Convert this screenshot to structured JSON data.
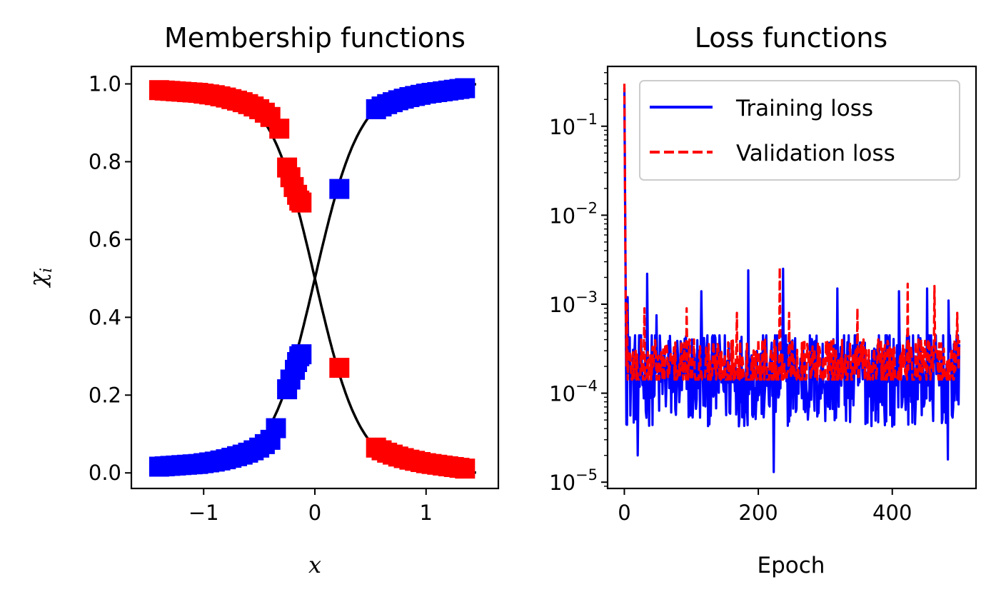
{
  "chart_data": [
    {
      "type": "scatter",
      "title": "Membership functions",
      "xlabel": "x",
      "ylabel": "χ_i",
      "xlim": [
        -1.65,
        1.65
      ],
      "ylim": [
        -0.04,
        1.045
      ],
      "xticks": [
        -1,
        0,
        1
      ],
      "xtick_labels": [
        "−1",
        "0",
        "1"
      ],
      "yticks": [
        0.0,
        0.2,
        0.4,
        0.6,
        0.8,
        1.0
      ],
      "ytick_labels": [
        "0.0",
        "0.2",
        "0.4",
        "0.6",
        "0.8",
        "1.0"
      ],
      "curve": {
        "type": "logistic",
        "slope": 4.9,
        "x_range": [
          -1.45,
          1.45
        ],
        "color": "#000000"
      },
      "series": [
        {
          "color": "#0000ff",
          "marker": "square",
          "x": [
            -1.4,
            -1.35,
            -1.3,
            -1.25,
            -1.2,
            -1.15,
            -1.1,
            -1.05,
            -1.0,
            -0.95,
            -0.9,
            -0.85,
            -0.8,
            -0.75,
            -0.7,
            -0.65,
            -0.6,
            -0.55,
            -0.5,
            -0.45,
            -0.4,
            -0.35,
            -0.25,
            -0.22,
            -0.18,
            -0.16,
            -0.14,
            -0.12,
            0.22,
            0.55,
            0.6,
            0.65,
            0.7,
            0.75,
            0.8,
            0.85,
            0.9,
            0.95,
            1.0,
            1.05,
            1.1,
            1.15,
            1.2,
            1.25,
            1.3,
            1.35
          ],
          "y": [
            0.016,
            0.017,
            0.018,
            0.019,
            0.02,
            0.021,
            0.022,
            0.023,
            0.025,
            0.027,
            0.029,
            0.032,
            0.035,
            0.039,
            0.043,
            0.047,
            0.052,
            0.058,
            0.065,
            0.074,
            0.085,
            0.115,
            0.215,
            0.24,
            0.265,
            0.285,
            0.3,
            0.305,
            0.73,
            0.935,
            0.942,
            0.948,
            0.953,
            0.958,
            0.962,
            0.966,
            0.969,
            0.972,
            0.975,
            0.977,
            0.979,
            0.981,
            0.983,
            0.985,
            0.987,
            0.989
          ]
        },
        {
          "color": "#ff0000",
          "marker": "square",
          "x": [
            -1.4,
            -1.35,
            -1.3,
            -1.25,
            -1.2,
            -1.15,
            -1.1,
            -1.05,
            -1.0,
            -0.95,
            -0.9,
            -0.85,
            -0.8,
            -0.75,
            -0.7,
            -0.65,
            -0.6,
            -0.55,
            -0.5,
            -0.45,
            -0.4,
            -0.32,
            -0.25,
            -0.22,
            -0.19,
            -0.16,
            -0.14,
            -0.12,
            0.22,
            0.55,
            0.6,
            0.65,
            0.7,
            0.75,
            0.8,
            0.85,
            0.9,
            0.95,
            1.0,
            1.05,
            1.1,
            1.15,
            1.2,
            1.25,
            1.3,
            1.35
          ],
          "y": [
            0.984,
            0.983,
            0.982,
            0.981,
            0.98,
            0.979,
            0.978,
            0.977,
            0.975,
            0.973,
            0.971,
            0.968,
            0.965,
            0.961,
            0.957,
            0.953,
            0.948,
            0.942,
            0.935,
            0.926,
            0.915,
            0.885,
            0.785,
            0.76,
            0.735,
            0.715,
            0.7,
            0.695,
            0.27,
            0.065,
            0.058,
            0.052,
            0.047,
            0.042,
            0.038,
            0.034,
            0.031,
            0.028,
            0.025,
            0.023,
            0.021,
            0.019,
            0.017,
            0.015,
            0.013,
            0.011
          ]
        }
      ]
    },
    {
      "type": "line",
      "title": "Loss functions",
      "xlabel": "Epoch",
      "ylabel": "",
      "yscale": "log",
      "xlim": [
        -25,
        525
      ],
      "ylim": [
        8.5e-06,
        0.47
      ],
      "xticks": [
        0,
        200,
        400
      ],
      "xtick_labels": [
        "0",
        "200",
        "400"
      ],
      "yticks": [
        1e-05,
        0.0001,
        0.001,
        0.01,
        0.1
      ],
      "ytick_labels": [
        {
          "base": "10",
          "exp": "−5"
        },
        {
          "base": "10",
          "exp": "−4"
        },
        {
          "base": "10",
          "exp": "−3"
        },
        {
          "base": "10",
          "exp": "−2"
        },
        {
          "base": "10",
          "exp": "−1"
        }
      ],
      "legend_position": "upper-right",
      "series": [
        {
          "name": "Training loss",
          "color": "#0000ff",
          "style": "solid",
          "x_range": [
            0,
            500
          ],
          "initial": [
            0.27,
            0.02,
            0.0015
          ],
          "baseline": 0.00015,
          "spread": [
            2e-05,
            0.001
          ],
          "spikes": [
            [
              5,
              0.0012
            ],
            [
              20,
              2e-05
            ],
            [
              34,
              0.0022
            ],
            [
              48,
              0.00075
            ],
            [
              115,
              0.0014
            ],
            [
              185,
              0.0024
            ],
            [
              223,
              1.3e-05
            ],
            [
              237,
              0.0025
            ],
            [
              318,
              0.0015
            ],
            [
              410,
              0.0014
            ],
            [
              452,
              0.0015
            ],
            [
              483,
              1.8e-05
            ],
            [
              484,
              0.0011
            ]
          ]
        },
        {
          "name": "Validation loss",
          "color": "#ff0000",
          "style": "dashed",
          "x_range": [
            0,
            500
          ],
          "initial": [
            0.3,
            0.02,
            0.0012
          ],
          "baseline": 0.00019,
          "spread": [
            8e-05,
            0.0009
          ],
          "spikes": [
            [
              4,
              0.001
            ],
            [
              30,
              0.0009
            ],
            [
              93,
              0.0009
            ],
            [
              168,
              0.0008
            ],
            [
              232,
              0.0026
            ],
            [
              246,
              0.0008
            ],
            [
              348,
              0.0009
            ],
            [
              423,
              0.0017
            ],
            [
              463,
              0.0016
            ],
            [
              497,
              0.0008
            ]
          ]
        }
      ]
    }
  ]
}
